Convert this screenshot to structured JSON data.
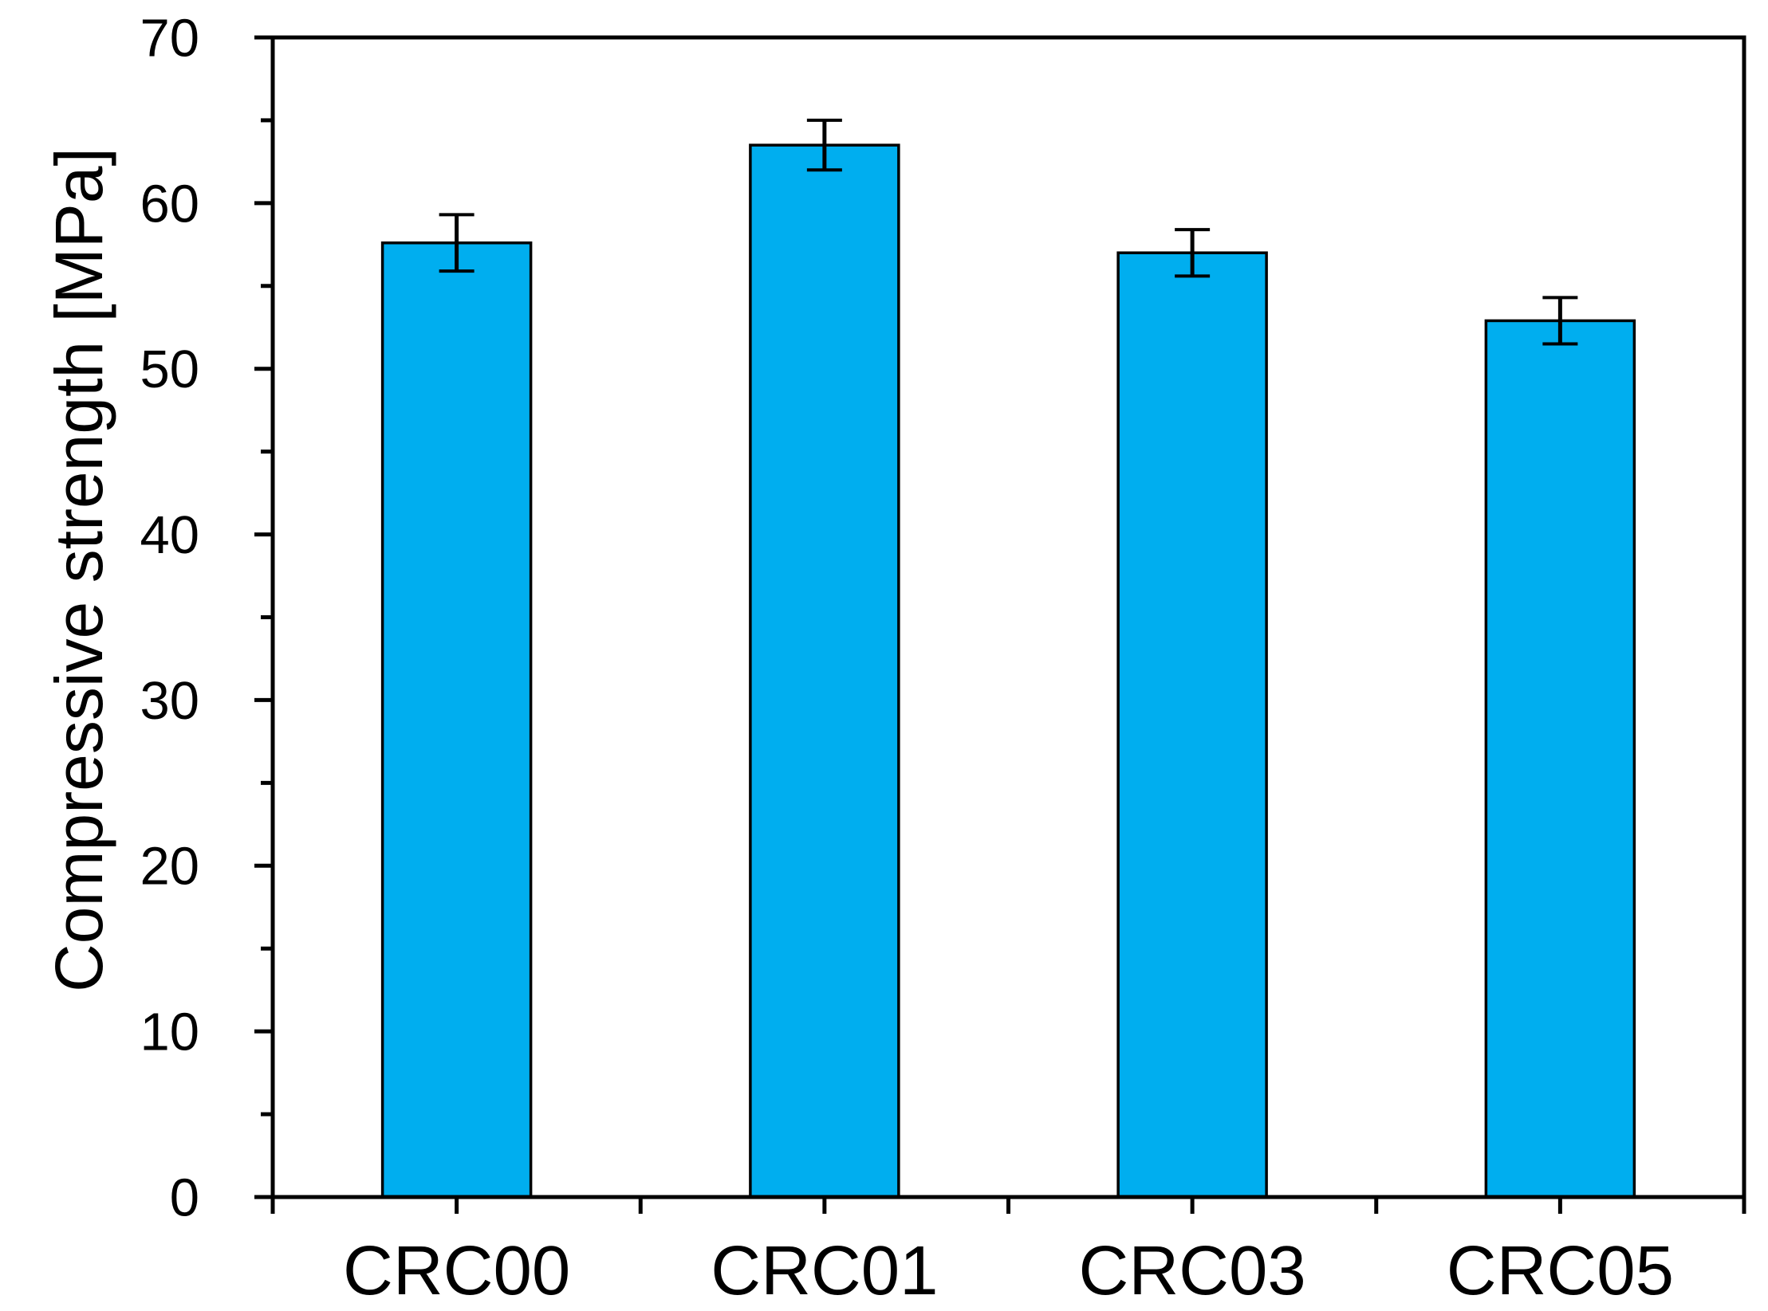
{
  "chart_data": {
    "type": "bar",
    "title": "",
    "xlabel": "",
    "ylabel": "Compressive strength [MPa]",
    "categories": [
      "CRC00",
      "CRC01",
      "CRC03",
      "CRC05"
    ],
    "values": [
      57.6,
      63.5,
      57.0,
      52.9
    ],
    "error_bars": [
      1.7,
      1.5,
      1.4,
      1.4
    ],
    "ylim": [
      0,
      70
    ],
    "ytick_major_interval": 10,
    "ytick_minor_interval": 5,
    "ytick_labels": [
      "0",
      "10",
      "20",
      "30",
      "40",
      "50",
      "60",
      "70"
    ],
    "grid": false,
    "legend": "none",
    "bar_fill_color": "#00AEEF",
    "bar_border_color": "#000000",
    "axis_color": "#000000",
    "error_bar_color": "#000000",
    "background_color": "#FFFFFF"
  }
}
